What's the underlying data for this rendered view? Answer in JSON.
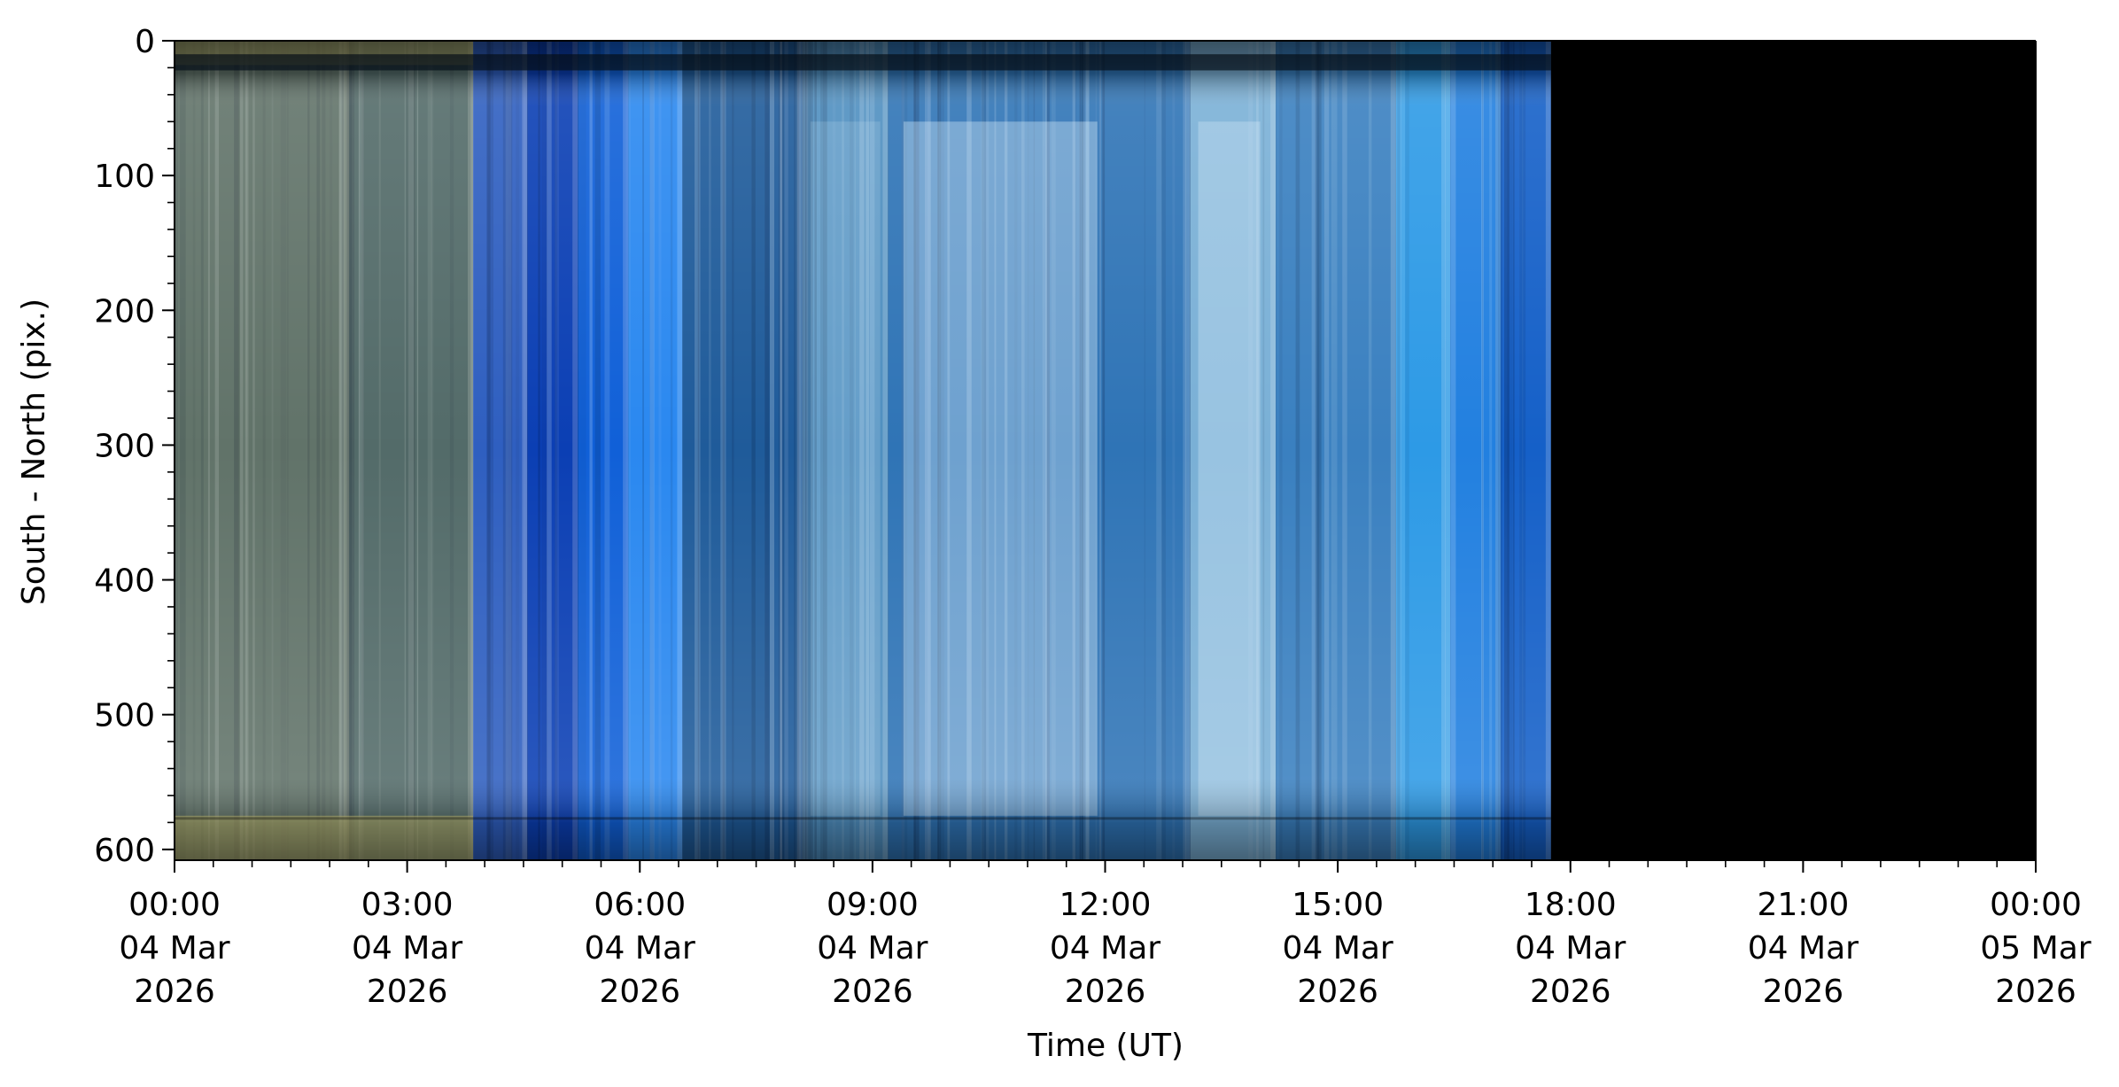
{
  "chart_data": {
    "type": "heatmap",
    "title": "",
    "xlabel": "Time (UT)",
    "ylabel": "South - North (pix.)",
    "x_ticks": [
      {
        "value": 0,
        "lines": [
          "00:00",
          "04 Mar",
          "2026"
        ]
      },
      {
        "value": 3,
        "lines": [
          "03:00",
          "04 Mar",
          "2026"
        ]
      },
      {
        "value": 6,
        "lines": [
          "06:00",
          "04 Mar",
          "2026"
        ]
      },
      {
        "value": 9,
        "lines": [
          "09:00",
          "04 Mar",
          "2026"
        ]
      },
      {
        "value": 12,
        "lines": [
          "12:00",
          "04 Mar",
          "2026"
        ]
      },
      {
        "value": 15,
        "lines": [
          "15:00",
          "04 Mar",
          "2026"
        ]
      },
      {
        "value": 18,
        "lines": [
          "18:00",
          "04 Mar",
          "2026"
        ]
      },
      {
        "value": 21,
        "lines": [
          "21:00",
          "04 Mar",
          "2026"
        ]
      },
      {
        "value": 24,
        "lines": [
          "00:00",
          "05 Mar",
          "2026"
        ]
      }
    ],
    "x_minor_step_hours": 0.5,
    "xlim_hours": [
      0,
      24
    ],
    "y_ticks": [
      "0",
      "100",
      "200",
      "300",
      "400",
      "500",
      "600"
    ],
    "y_minor_step": 20,
    "ylim": [
      608,
      0
    ],
    "grid": false,
    "data_end_hour": 17.75,
    "time_segments": [
      {
        "start": 0.0,
        "end": 2.25,
        "color": "#4b6268"
      },
      {
        "start": 2.25,
        "end": 3.85,
        "color": "#3a5868"
      },
      {
        "start": 3.85,
        "end": 4.55,
        "color": "#2f5fc0"
      },
      {
        "start": 4.55,
        "end": 5.2,
        "color": "#0b3fb4"
      },
      {
        "start": 5.2,
        "end": 5.85,
        "color": "#1060d8"
      },
      {
        "start": 5.85,
        "end": 6.55,
        "color": "#2a88f0"
      },
      {
        "start": 6.55,
        "end": 8.1,
        "color": "#1f5b9a"
      },
      {
        "start": 8.1,
        "end": 9.2,
        "color": "#4f8fc0"
      },
      {
        "start": 9.2,
        "end": 13.1,
        "color": "#2f74b6"
      },
      {
        "start": 13.1,
        "end": 14.2,
        "color": "#7ab0d6"
      },
      {
        "start": 14.2,
        "end": 15.75,
        "color": "#3a80c0"
      },
      {
        "start": 15.75,
        "end": 16.45,
        "color": "#2d9ae6"
      },
      {
        "start": 16.45,
        "end": 17.1,
        "color": "#2280e0"
      },
      {
        "start": 17.1,
        "end": 17.75,
        "color": "#1560c8"
      }
    ]
  }
}
